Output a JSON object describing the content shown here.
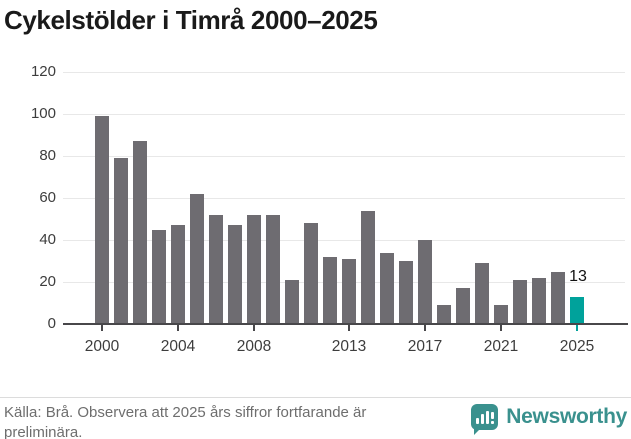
{
  "title": "Cykelstölder i Timrå 2000–2025",
  "chart_data": {
    "type": "bar",
    "title": "Cykelstölder i Timrå 2000–2025",
    "categories": [
      "2000",
      "2001",
      "2002",
      "2003",
      "2004",
      "2005",
      "2006",
      "2007",
      "2008",
      "2009",
      "2010",
      "2011",
      "2012",
      "2013",
      "2014",
      "2015",
      "2016",
      "2017",
      "2018",
      "2019",
      "2020",
      "2021",
      "2022",
      "2023",
      "2024",
      "2025"
    ],
    "values": [
      99,
      79,
      87,
      45,
      47,
      62,
      52,
      47,
      52,
      52,
      21,
      48,
      32,
      31,
      54,
      34,
      30,
      40,
      9,
      17,
      29,
      9,
      21,
      22,
      25,
      13
    ],
    "highlight": {
      "category": "2025",
      "value": 13,
      "label": "13"
    },
    "xlabel": "",
    "ylabel": "",
    "ylim": [
      0,
      120
    ],
    "yticks": [
      0,
      20,
      40,
      60,
      80,
      100,
      120
    ],
    "xticks": [
      "2000",
      "2004",
      "2008",
      "2013",
      "2017",
      "2021",
      "2025"
    ],
    "grid": true,
    "legend": "none",
    "bar_color": "#6e6c71",
    "highlight_color": "#00a29b",
    "grid_color": "#e8e8e8",
    "axis_color": "#48474a"
  },
  "footer": {
    "source_text": "Källa: Brå. Observera att 2025 års siffror fortfarande är preliminära.",
    "brand": "Newsworthy",
    "brand_color": "#3a918e"
  }
}
